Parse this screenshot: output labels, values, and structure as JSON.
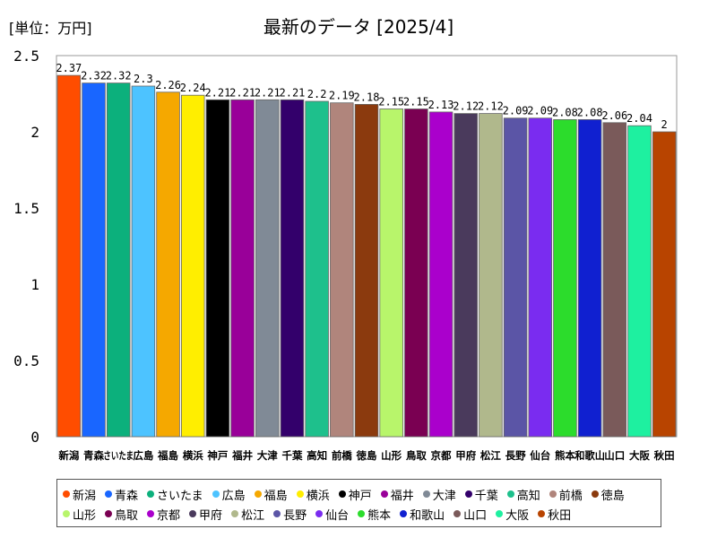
{
  "unit_label": "[単位：万円]",
  "chart_data": {
    "type": "bar",
    "title": "最新のデータ [2025/4]",
    "xlabel": "",
    "ylabel": "",
    "ylim": [
      0,
      2.5
    ],
    "yticks": [
      "0",
      "0.5",
      "1",
      "1.5",
      "2",
      "2.5"
    ],
    "grid": false,
    "legend_position": "bottom",
    "categories": [
      "新潟",
      "青森",
      "さいたま",
      "広島",
      "福島",
      "横浜",
      "神戸",
      "福井",
      "大津",
      "千葉",
      "高知",
      "前橋",
      "徳島",
      "山形",
      "鳥取",
      "京都",
      "甲府",
      "松江",
      "長野",
      "仙台",
      "熊本",
      "和歌山",
      "山口",
      "大阪",
      "秋田"
    ],
    "values": [
      2.37,
      2.32,
      2.32,
      2.3,
      2.26,
      2.24,
      2.21,
      2.21,
      2.21,
      2.21,
      2.2,
      2.19,
      2.18,
      2.15,
      2.15,
      2.13,
      2.12,
      2.12,
      2.09,
      2.09,
      2.08,
      2.08,
      2.06,
      2.04,
      2.0
    ],
    "value_labels": [
      "2.37",
      "2.32",
      "2.32",
      "2.3",
      "2.26",
      "2.24",
      "2.21",
      "2.21",
      "2.21",
      "2.21",
      "2.2",
      "2.19",
      "2.18",
      "2.15",
      "2.15",
      "2.13",
      "2.12",
      "2.12",
      "2.09",
      "2.09",
      "2.08",
      "2.08",
      "2.06",
      "2.04",
      "2"
    ],
    "colors": [
      "#ff4d00",
      "#1966ff",
      "#0cb07c",
      "#4dc3ff",
      "#f5a800",
      "#ffee00",
      "#000000",
      "#990099",
      "#808a96",
      "#33006b",
      "#1ec08c",
      "#b0857c",
      "#8b3a0e",
      "#b8f56b",
      "#7a0052",
      "#aa00cc",
      "#4a3a5c",
      "#b0b88c",
      "#5b55a6",
      "#7a2cf0",
      "#2cdc2c",
      "#1020d0",
      "#7a5a5a",
      "#1ef0a0",
      "#b84400"
    ]
  }
}
